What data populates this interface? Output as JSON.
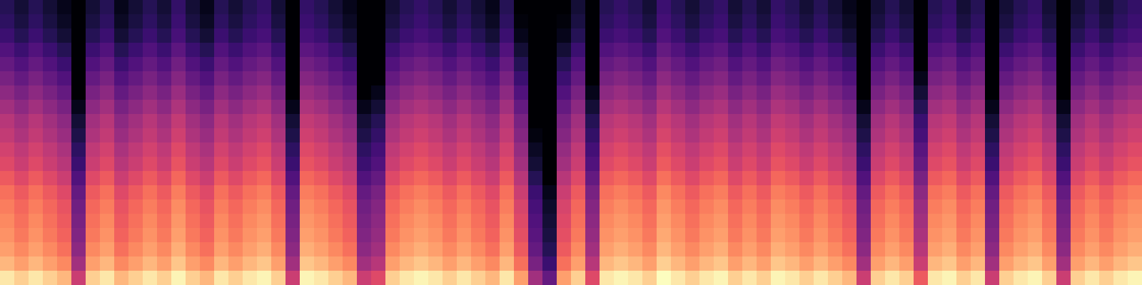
{
  "chart_data": {
    "type": "heatmap",
    "color": "magma",
    "zlim": [
      0,
      100
    ],
    "tick_labels": false,
    "values": [
      [
        15,
        10,
        15,
        10,
        5,
        0,
        10,
        15,
        5,
        10,
        15,
        10,
        18,
        10,
        5,
        15,
        10,
        15,
        18,
        10,
        0,
        18,
        15,
        10,
        5,
        0,
        0,
        10,
        15,
        18,
        15,
        10,
        15,
        10,
        5,
        15,
        0,
        0,
        0,
        0,
        10,
        0,
        15,
        18,
        15,
        10,
        20,
        15,
        10,
        15,
        18,
        10,
        15,
        10,
        18,
        15,
        10,
        15,
        10,
        5,
        0,
        10,
        15,
        10,
        0,
        15,
        18,
        10,
        15,
        0,
        10,
        15,
        18,
        10,
        0,
        10,
        15,
        10,
        15,
        18
      ],
      [
        17,
        12,
        17,
        12,
        7,
        0,
        12,
        17,
        7,
        12,
        17,
        12,
        20,
        12,
        7,
        17,
        12,
        17,
        20,
        12,
        0,
        20,
        17,
        12,
        7,
        0,
        0,
        12,
        17,
        20,
        17,
        12,
        17,
        12,
        7,
        17,
        2,
        0,
        0,
        2,
        12,
        0,
        17,
        20,
        17,
        12,
        22,
        17,
        12,
        17,
        20,
        12,
        17,
        12,
        20,
        17,
        12,
        17,
        12,
        7,
        0,
        12,
        17,
        12,
        0,
        17,
        20,
        12,
        17,
        0,
        12,
        17,
        20,
        12,
        0,
        12,
        17,
        12,
        17,
        20
      ],
      [
        20,
        15,
        20,
        15,
        10,
        0,
        15,
        20,
        10,
        15,
        20,
        15,
        23,
        15,
        10,
        20,
        15,
        20,
        23,
        15,
        0,
        23,
        20,
        15,
        10,
        0,
        0,
        15,
        20,
        23,
        20,
        15,
        20,
        15,
        10,
        20,
        5,
        0,
        0,
        5,
        15,
        0,
        20,
        23,
        20,
        15,
        25,
        20,
        15,
        20,
        23,
        15,
        20,
        15,
        23,
        20,
        15,
        20,
        15,
        10,
        0,
        15,
        20,
        15,
        0,
        20,
        23,
        15,
        20,
        0,
        15,
        20,
        23,
        15,
        0,
        15,
        20,
        15,
        20,
        23
      ],
      [
        25,
        20,
        25,
        20,
        15,
        0,
        20,
        25,
        15,
        20,
        25,
        20,
        28,
        20,
        15,
        25,
        20,
        25,
        28,
        20,
        0,
        28,
        25,
        20,
        15,
        0,
        0,
        20,
        25,
        28,
        25,
        20,
        25,
        20,
        15,
        25,
        10,
        0,
        0,
        10,
        20,
        0,
        25,
        28,
        25,
        20,
        30,
        25,
        20,
        25,
        28,
        20,
        25,
        20,
        28,
        25,
        20,
        25,
        20,
        15,
        0,
        20,
        25,
        20,
        0,
        25,
        28,
        20,
        25,
        0,
        20,
        25,
        28,
        20,
        0,
        20,
        25,
        20,
        25,
        28
      ],
      [
        30,
        25,
        30,
        25,
        20,
        0,
        25,
        30,
        20,
        25,
        30,
        25,
        33,
        25,
        20,
        30,
        25,
        30,
        33,
        25,
        0,
        33,
        30,
        25,
        20,
        0,
        0,
        25,
        30,
        33,
        30,
        25,
        30,
        25,
        20,
        30,
        15,
        0,
        0,
        15,
        25,
        0,
        30,
        33,
        30,
        25,
        35,
        30,
        25,
        30,
        33,
        25,
        30,
        25,
        33,
        30,
        25,
        30,
        25,
        20,
        0,
        25,
        30,
        25,
        0,
        30,
        33,
        25,
        30,
        0,
        25,
        30,
        33,
        25,
        0,
        25,
        30,
        25,
        30,
        33
      ],
      [
        35,
        30,
        35,
        30,
        25,
        0,
        30,
        35,
        25,
        30,
        35,
        30,
        38,
        30,
        25,
        35,
        30,
        35,
        38,
        30,
        0,
        38,
        35,
        30,
        25,
        0,
        0,
        30,
        35,
        38,
        35,
        30,
        35,
        30,
        25,
        35,
        20,
        0,
        0,
        20,
        30,
        0,
        35,
        38,
        35,
        30,
        40,
        35,
        30,
        35,
        38,
        30,
        35,
        30,
        38,
        35,
        30,
        35,
        30,
        25,
        0,
        30,
        35,
        30,
        5,
        35,
        38,
        30,
        35,
        0,
        30,
        35,
        38,
        30,
        0,
        30,
        35,
        30,
        35,
        38
      ],
      [
        40,
        35,
        40,
        35,
        30,
        0,
        35,
        40,
        30,
        35,
        40,
        35,
        43,
        35,
        30,
        40,
        35,
        40,
        43,
        35,
        0,
        43,
        40,
        35,
        30,
        0,
        5,
        35,
        40,
        43,
        40,
        35,
        40,
        35,
        30,
        40,
        25,
        0,
        0,
        25,
        35,
        5,
        40,
        43,
        40,
        35,
        45,
        40,
        35,
        40,
        43,
        35,
        40,
        35,
        43,
        40,
        35,
        40,
        35,
        30,
        0,
        35,
        40,
        35,
        10,
        40,
        43,
        35,
        40,
        0,
        35,
        40,
        43,
        35,
        0,
        35,
        40,
        35,
        40,
        43
      ],
      [
        45,
        40,
        45,
        40,
        35,
        5,
        40,
        45,
        35,
        40,
        45,
        40,
        48,
        40,
        35,
        45,
        40,
        45,
        48,
        40,
        5,
        48,
        45,
        40,
        35,
        5,
        10,
        40,
        45,
        48,
        45,
        40,
        45,
        40,
        35,
        45,
        30,
        0,
        0,
        30,
        40,
        10,
        45,
        48,
        45,
        40,
        50,
        45,
        40,
        45,
        48,
        40,
        45,
        40,
        48,
        45,
        40,
        45,
        40,
        35,
        5,
        40,
        45,
        40,
        15,
        45,
        48,
        40,
        45,
        5,
        40,
        45,
        48,
        40,
        5,
        40,
        45,
        40,
        45,
        48
      ],
      [
        50,
        45,
        50,
        45,
        40,
        10,
        45,
        50,
        40,
        45,
        50,
        45,
        53,
        45,
        40,
        50,
        45,
        50,
        53,
        45,
        10,
        53,
        50,
        45,
        40,
        10,
        15,
        45,
        50,
        53,
        50,
        45,
        50,
        45,
        40,
        50,
        35,
        0,
        0,
        35,
        45,
        15,
        50,
        53,
        50,
        45,
        55,
        50,
        45,
        50,
        53,
        45,
        50,
        45,
        53,
        50,
        45,
        50,
        45,
        40,
        10,
        45,
        50,
        45,
        20,
        50,
        53,
        45,
        50,
        10,
        45,
        50,
        53,
        45,
        10,
        45,
        50,
        45,
        50,
        53
      ],
      [
        53,
        48,
        53,
        48,
        43,
        13,
        48,
        53,
        43,
        48,
        53,
        48,
        56,
        48,
        43,
        53,
        48,
        53,
        56,
        48,
        13,
        56,
        53,
        48,
        43,
        13,
        18,
        48,
        53,
        56,
        53,
        48,
        53,
        48,
        43,
        53,
        38,
        3,
        0,
        38,
        48,
        18,
        53,
        56,
        53,
        48,
        58,
        53,
        48,
        53,
        56,
        48,
        53,
        48,
        56,
        53,
        48,
        53,
        48,
        43,
        13,
        48,
        53,
        48,
        23,
        53,
        56,
        48,
        53,
        13,
        48,
        53,
        56,
        48,
        13,
        48,
        53,
        48,
        53,
        56
      ],
      [
        57,
        52,
        57,
        52,
        47,
        17,
        52,
        57,
        47,
        52,
        57,
        52,
        60,
        52,
        47,
        57,
        52,
        57,
        60,
        52,
        17,
        60,
        57,
        52,
        47,
        17,
        22,
        52,
        57,
        60,
        57,
        52,
        57,
        52,
        47,
        57,
        42,
        7,
        0,
        42,
        52,
        22,
        57,
        60,
        57,
        52,
        62,
        57,
        52,
        57,
        60,
        52,
        57,
        52,
        60,
        57,
        52,
        57,
        52,
        47,
        17,
        52,
        57,
        52,
        27,
        57,
        60,
        52,
        57,
        17,
        52,
        57,
        60,
        52,
        17,
        52,
        57,
        52,
        57,
        60
      ],
      [
        60,
        55,
        60,
        55,
        50,
        20,
        55,
        60,
        50,
        55,
        60,
        55,
        63,
        55,
        50,
        60,
        55,
        60,
        63,
        55,
        20,
        63,
        60,
        55,
        50,
        20,
        25,
        55,
        60,
        63,
        60,
        55,
        60,
        55,
        50,
        60,
        45,
        10,
        0,
        45,
        55,
        25,
        60,
        63,
        60,
        55,
        65,
        60,
        55,
        60,
        63,
        55,
        60,
        55,
        63,
        60,
        55,
        60,
        55,
        50,
        20,
        55,
        60,
        55,
        30,
        60,
        63,
        55,
        60,
        20,
        55,
        60,
        63,
        55,
        20,
        55,
        60,
        55,
        60,
        63
      ],
      [
        65,
        60,
        65,
        60,
        55,
        25,
        60,
        65,
        55,
        60,
        65,
        60,
        68,
        60,
        55,
        65,
        60,
        65,
        68,
        60,
        25,
        68,
        65,
        60,
        55,
        25,
        30,
        60,
        65,
        68,
        65,
        60,
        65,
        60,
        55,
        65,
        50,
        15,
        0,
        50,
        60,
        30,
        65,
        68,
        65,
        60,
        70,
        65,
        60,
        65,
        68,
        60,
        65,
        60,
        68,
        65,
        60,
        65,
        60,
        55,
        25,
        60,
        65,
        60,
        35,
        65,
        68,
        60,
        65,
        25,
        60,
        65,
        68,
        60,
        25,
        60,
        65,
        60,
        65,
        68
      ],
      [
        70,
        65,
        70,
        65,
        60,
        30,
        65,
        70,
        60,
        65,
        70,
        65,
        73,
        65,
        60,
        70,
        65,
        70,
        73,
        65,
        30,
        73,
        70,
        65,
        60,
        30,
        35,
        65,
        70,
        73,
        70,
        65,
        70,
        65,
        60,
        70,
        55,
        20,
        5,
        55,
        65,
        35,
        70,
        73,
        70,
        65,
        75,
        70,
        65,
        70,
        73,
        65,
        70,
        65,
        73,
        70,
        65,
        70,
        65,
        60,
        30,
        65,
        70,
        65,
        40,
        70,
        73,
        65,
        70,
        30,
        65,
        70,
        73,
        65,
        30,
        65,
        70,
        65,
        70,
        73
      ],
      [
        73,
        68,
        73,
        68,
        63,
        33,
        68,
        73,
        63,
        68,
        73,
        68,
        76,
        68,
        63,
        73,
        68,
        73,
        76,
        68,
        33,
        76,
        73,
        68,
        63,
        33,
        38,
        68,
        73,
        76,
        73,
        68,
        73,
        68,
        63,
        73,
        58,
        23,
        8,
        58,
        68,
        38,
        73,
        76,
        73,
        68,
        78,
        73,
        68,
        73,
        76,
        68,
        73,
        68,
        76,
        73,
        68,
        73,
        68,
        63,
        33,
        68,
        73,
        68,
        43,
        73,
        76,
        68,
        73,
        33,
        68,
        73,
        76,
        68,
        33,
        68,
        73,
        68,
        73,
        76
      ],
      [
        75,
        70,
        75,
        70,
        65,
        35,
        70,
        75,
        65,
        70,
        75,
        70,
        78,
        70,
        65,
        75,
        70,
        75,
        78,
        70,
        35,
        78,
        75,
        70,
        65,
        35,
        40,
        70,
        75,
        78,
        75,
        70,
        75,
        70,
        65,
        75,
        60,
        25,
        10,
        60,
        70,
        40,
        75,
        78,
        75,
        70,
        80,
        75,
        70,
        75,
        78,
        70,
        75,
        70,
        78,
        75,
        70,
        75,
        70,
        65,
        35,
        70,
        75,
        70,
        45,
        75,
        78,
        70,
        75,
        35,
        70,
        75,
        78,
        70,
        35,
        70,
        75,
        70,
        75,
        78
      ],
      [
        77,
        72,
        77,
        72,
        67,
        37,
        72,
        77,
        67,
        72,
        77,
        72,
        80,
        72,
        67,
        77,
        72,
        77,
        80,
        72,
        37,
        80,
        77,
        72,
        67,
        37,
        42,
        72,
        77,
        80,
        77,
        72,
        77,
        72,
        67,
        77,
        62,
        27,
        12,
        62,
        72,
        42,
        77,
        80,
        77,
        72,
        82,
        77,
        72,
        77,
        80,
        72,
        77,
        72,
        80,
        77,
        72,
        77,
        72,
        67,
        37,
        72,
        77,
        72,
        47,
        77,
        80,
        72,
        77,
        37,
        72,
        77,
        80,
        72,
        37,
        72,
        77,
        72,
        77,
        80
      ],
      [
        80,
        75,
        80,
        75,
        70,
        40,
        75,
        80,
        70,
        75,
        80,
        75,
        83,
        75,
        70,
        80,
        75,
        80,
        83,
        75,
        40,
        83,
        80,
        75,
        70,
        40,
        45,
        75,
        80,
        83,
        80,
        75,
        80,
        75,
        70,
        80,
        65,
        30,
        15,
        65,
        75,
        45,
        80,
        83,
        80,
        75,
        85,
        80,
        75,
        80,
        83,
        75,
        80,
        75,
        83,
        80,
        75,
        80,
        75,
        70,
        40,
        75,
        80,
        75,
        50,
        80,
        83,
        75,
        80,
        40,
        75,
        80,
        83,
        75,
        40,
        75,
        80,
        75,
        80,
        83
      ],
      [
        85,
        80,
        85,
        80,
        75,
        45,
        80,
        85,
        75,
        80,
        85,
        80,
        88,
        80,
        75,
        85,
        80,
        85,
        88,
        80,
        45,
        88,
        85,
        80,
        75,
        45,
        50,
        80,
        85,
        88,
        85,
        80,
        85,
        80,
        75,
        85,
        70,
        35,
        20,
        70,
        80,
        50,
        85,
        88,
        85,
        80,
        90,
        85,
        80,
        85,
        88,
        80,
        85,
        80,
        88,
        85,
        80,
        85,
        80,
        75,
        45,
        80,
        85,
        80,
        55,
        85,
        88,
        80,
        85,
        45,
        80,
        85,
        88,
        80,
        45,
        80,
        85,
        80,
        85,
        88
      ],
      [
        95,
        90,
        95,
        90,
        85,
        55,
        90,
        95,
        85,
        90,
        95,
        90,
        98,
        90,
        85,
        95,
        90,
        95,
        98,
        90,
        55,
        98,
        95,
        90,
        85,
        55,
        60,
        90,
        95,
        98,
        95,
        90,
        95,
        90,
        85,
        95,
        80,
        45,
        30,
        80,
        90,
        60,
        95,
        98,
        95,
        90,
        100,
        95,
        90,
        95,
        98,
        90,
        95,
        90,
        98,
        95,
        90,
        95,
        90,
        85,
        55,
        90,
        95,
        90,
        65,
        95,
        98,
        90,
        95,
        55,
        90,
        95,
        98,
        90,
        55,
        90,
        95,
        90,
        95,
        98
      ]
    ]
  }
}
